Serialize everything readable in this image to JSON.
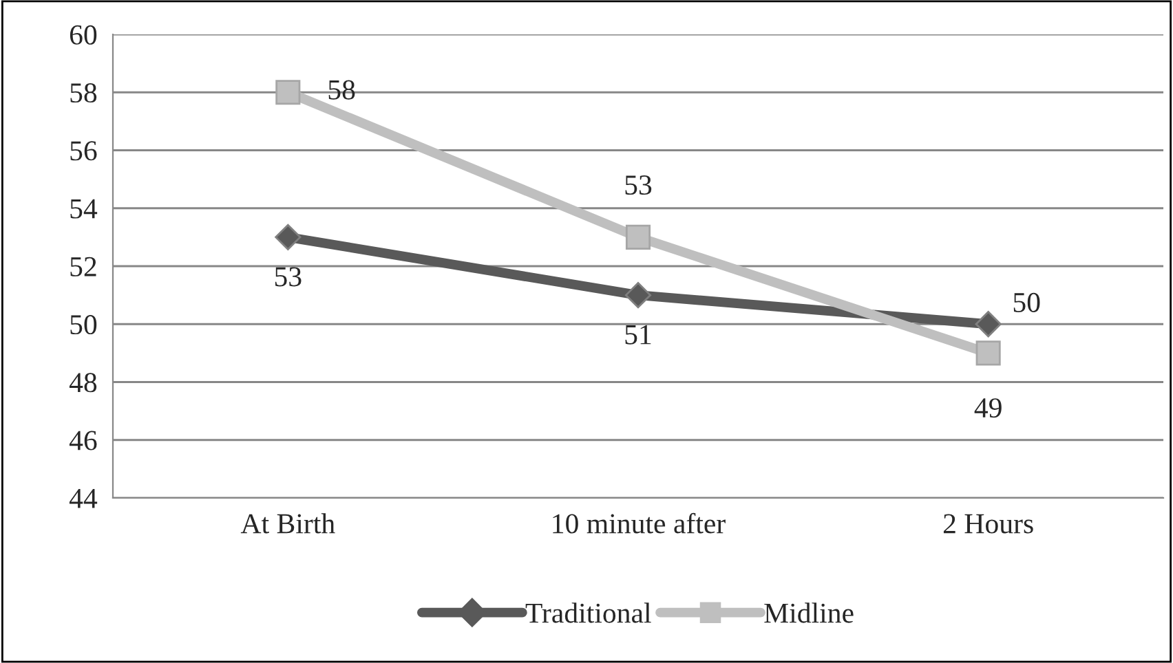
{
  "chart_data": {
    "type": "line",
    "categories": [
      "At Birth",
      "10 minute after",
      "2 Hours"
    ],
    "series": [
      {
        "name": "Traditional",
        "color": "#595959",
        "values": [
          53,
          51,
          50
        ],
        "marker": "diamond"
      },
      {
        "name": "Midline",
        "color": "#bfbfbf",
        "values": [
          58,
          53,
          49
        ],
        "marker": "square"
      }
    ],
    "ylim": [
      44,
      60
    ],
    "yticks": [
      44,
      46,
      48,
      50,
      52,
      54,
      56,
      58,
      60
    ],
    "grid": "y",
    "legend": "bottom",
    "data_labels": true,
    "line_style": "solid"
  }
}
